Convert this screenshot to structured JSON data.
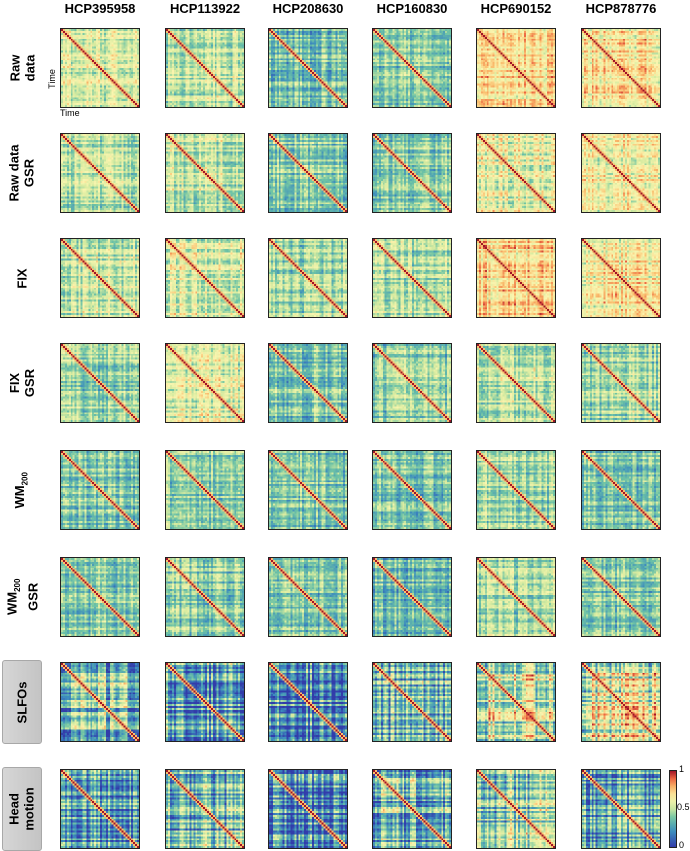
{
  "chart_data": {
    "type": "heatmap",
    "title": "",
    "subjects": [
      "HCP395958",
      "HCP113922",
      "HCP208630",
      "HCP160830",
      "HCP690152",
      "HCP878776"
    ],
    "rows": [
      {
        "label": "Raw data",
        "boxed": false
      },
      {
        "label": "Raw data GSR",
        "boxed": false
      },
      {
        "label": "FIX",
        "boxed": false
      },
      {
        "label": "FIX GSR",
        "boxed": false
      },
      {
        "label": "WM200",
        "boxed": false
      },
      {
        "label": "WM200 GSR",
        "boxed": false
      },
      {
        "label": "SLFOs",
        "boxed": true
      },
      {
        "label": "Head motion",
        "boxed": true
      }
    ],
    "xlabel": "Time",
    "ylabel": "Time",
    "colorbar": {
      "ticks": [
        "0",
        "0.5",
        "1"
      ],
      "range": [
        0,
        1
      ],
      "colormap": "Spectral (blue-yellow-red)"
    },
    "mean_similarity": [
      [
        0.55,
        0.5,
        0.38,
        0.4,
        0.68,
        0.68
      ],
      [
        0.48,
        0.52,
        0.42,
        0.42,
        0.58,
        0.62
      ],
      [
        0.52,
        0.58,
        0.45,
        0.47,
        0.7,
        0.65
      ],
      [
        0.44,
        0.55,
        0.4,
        0.4,
        0.5,
        0.46
      ],
      [
        0.4,
        0.43,
        0.38,
        0.36,
        0.45,
        0.4
      ],
      [
        0.4,
        0.42,
        0.38,
        0.36,
        0.45,
        0.4
      ],
      [
        0.38,
        0.25,
        0.2,
        0.3,
        0.55,
        0.55
      ],
      [
        0.28,
        0.3,
        0.15,
        0.35,
        0.38,
        0.28
      ]
    ],
    "diagonal_value": 1
  }
}
